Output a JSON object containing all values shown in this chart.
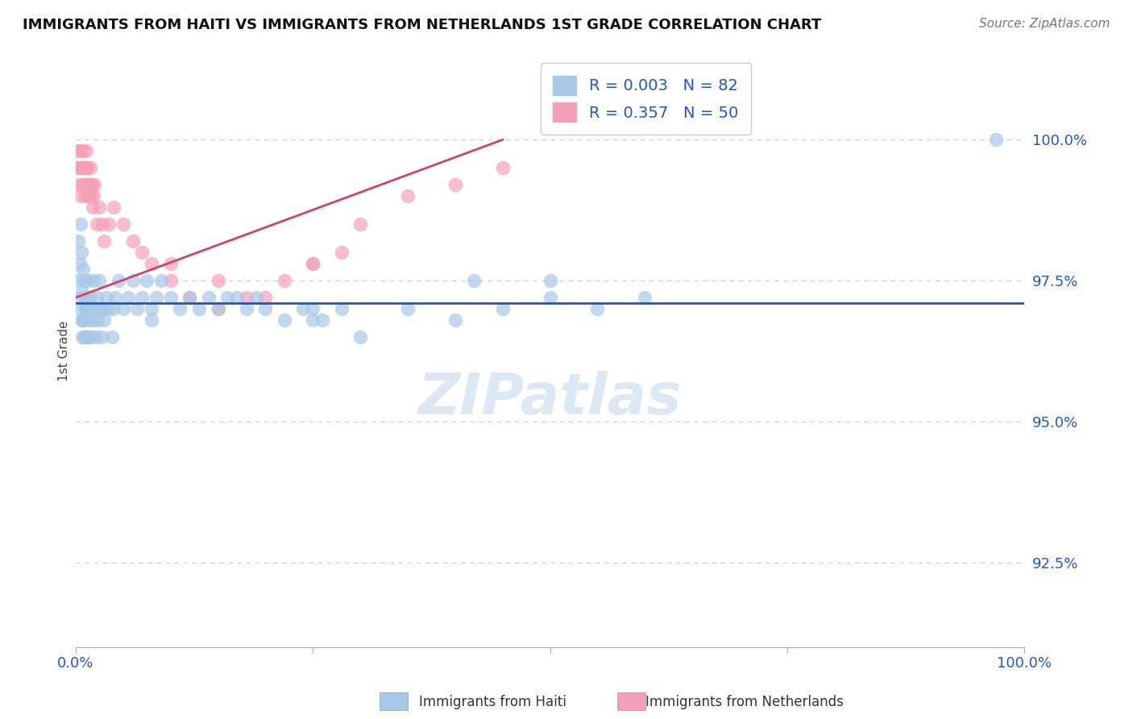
{
  "title": "IMMIGRANTS FROM HAITI VS IMMIGRANTS FROM NETHERLANDS 1ST GRADE CORRELATION CHART",
  "source": "Source: ZipAtlas.com",
  "ylabel": "1st Grade",
  "watermark": "ZIPatlas",
  "R_haiti": 0.003,
  "N_haiti": 82,
  "R_netherlands": 0.357,
  "N_netherlands": 50,
  "haiti_color": "#a8c8e8",
  "netherlands_color": "#f4a0b8",
  "haiti_line_color": "#2255bb",
  "netherlands_line_color": "#cc4466",
  "xlim": [
    0.0,
    100.0
  ],
  "ylim": [
    91.0,
    101.5
  ],
  "ytick_values": [
    92.5,
    95.0,
    97.5,
    100.0
  ],
  "haiti_x": [
    0.2,
    0.3,
    0.4,
    0.5,
    0.5,
    0.6,
    0.7,
    0.8,
    0.8,
    0.9,
    1.0,
    1.0,
    1.1,
    1.2,
    1.3,
    1.4,
    1.5,
    1.6,
    1.7,
    1.8,
    1.9,
    2.0,
    2.1,
    2.2,
    2.3,
    2.5,
    2.6,
    2.7,
    2.9,
    3.0,
    3.2,
    3.5,
    3.8,
    4.0,
    4.2,
    4.5,
    5.0,
    5.5,
    6.0,
    6.5,
    7.0,
    7.5,
    8.0,
    8.5,
    9.0,
    10.0,
    11.0,
    12.0,
    13.0,
    14.0,
    15.0,
    16.0,
    17.0,
    18.0,
    19.0,
    20.0,
    22.0,
    24.0,
    25.0,
    26.0,
    28.0,
    30.0,
    35.0,
    40.0,
    42.0,
    45.0,
    50.0,
    55.0,
    60.0,
    0.5,
    0.6,
    0.7,
    0.8,
    0.9,
    1.0,
    1.1,
    1.2,
    1.3,
    50.0,
    97.0,
    25.0,
    8.0
  ],
  "haiti_y": [
    97.5,
    98.2,
    97.8,
    98.5,
    97.0,
    98.0,
    97.3,
    97.7,
    96.8,
    97.5,
    97.2,
    96.5,
    97.0,
    97.5,
    97.0,
    96.8,
    97.2,
    96.5,
    97.0,
    96.8,
    97.5,
    97.0,
    96.5,
    97.2,
    96.8,
    97.5,
    97.0,
    96.5,
    97.0,
    96.8,
    97.2,
    97.0,
    96.5,
    97.0,
    97.2,
    97.5,
    97.0,
    97.2,
    97.5,
    97.0,
    97.2,
    97.5,
    97.0,
    97.2,
    97.5,
    97.2,
    97.0,
    97.2,
    97.0,
    97.2,
    97.0,
    97.2,
    97.2,
    97.0,
    97.2,
    97.0,
    96.8,
    97.0,
    97.0,
    96.8,
    97.0,
    96.5,
    97.0,
    96.8,
    97.5,
    97.0,
    97.2,
    97.0,
    97.2,
    97.2,
    96.8,
    96.5,
    96.8,
    96.5,
    97.0,
    96.5,
    97.0,
    96.5,
    97.5,
    100.0,
    96.8,
    96.8
  ],
  "netherlands_x": [
    0.1,
    0.2,
    0.3,
    0.4,
    0.5,
    0.5,
    0.6,
    0.7,
    0.8,
    0.8,
    0.9,
    1.0,
    1.0,
    1.1,
    1.1,
    1.2,
    1.3,
    1.4,
    1.5,
    1.5,
    1.6,
    1.7,
    1.8,
    1.9,
    2.0,
    2.2,
    2.5,
    2.8,
    3.0,
    3.5,
    4.0,
    5.0,
    6.0,
    7.0,
    8.0,
    10.0,
    12.0,
    15.0,
    18.0,
    22.0,
    25.0,
    28.0,
    30.0,
    35.0,
    40.0,
    45.0,
    10.0,
    15.0,
    20.0,
    25.0
  ],
  "netherlands_y": [
    99.5,
    99.8,
    99.2,
    99.5,
    99.0,
    99.8,
    99.5,
    99.2,
    99.8,
    99.5,
    99.2,
    99.5,
    99.0,
    99.8,
    99.2,
    99.5,
    99.2,
    99.0,
    99.5,
    99.2,
    99.0,
    99.2,
    98.8,
    99.0,
    99.2,
    98.5,
    98.8,
    98.5,
    98.2,
    98.5,
    98.8,
    98.5,
    98.2,
    98.0,
    97.8,
    97.5,
    97.2,
    97.0,
    97.2,
    97.5,
    97.8,
    98.0,
    98.5,
    99.0,
    99.2,
    99.5,
    97.8,
    97.5,
    97.2,
    97.8
  ],
  "haiti_line_y_start": 97.1,
  "haiti_line_y_end": 97.1,
  "neth_line_x_start": 0.0,
  "neth_line_x_end": 45.0,
  "neth_line_y_start": 97.2,
  "neth_line_y_end": 100.0
}
